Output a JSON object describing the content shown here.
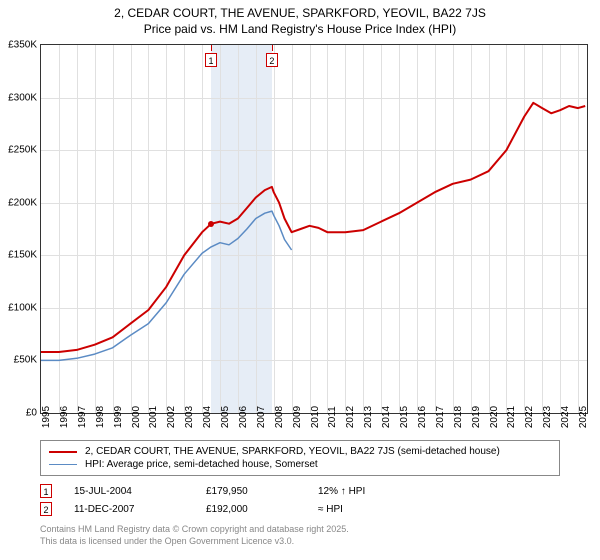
{
  "title_line1": "2, CEDAR COURT, THE AVENUE, SPARKFORD, YEOVIL, BA22 7JS",
  "title_line2": "Price paid vs. HM Land Registry's House Price Index (HPI)",
  "chart": {
    "type": "line",
    "background_color": "#ffffff",
    "grid_color": "#e0e0e0",
    "border_color": "#333333",
    "highlight_band": {
      "x_start": 2004.5,
      "x_end": 2007.9,
      "color": "rgba(200,215,235,0.45)"
    },
    "xlim": [
      1995,
      2025.5
    ],
    "ylim": [
      0,
      350000
    ],
    "ytick_step": 50000,
    "ytick_prefix": "£",
    "ytick_suffix": "K",
    "xticks": [
      1995,
      1996,
      1997,
      1998,
      1999,
      2000,
      2001,
      2002,
      2003,
      2004,
      2005,
      2006,
      2007,
      2008,
      2009,
      2010,
      2011,
      2012,
      2013,
      2014,
      2015,
      2016,
      2017,
      2018,
      2019,
      2020,
      2021,
      2022,
      2023,
      2024,
      2025
    ],
    "label_fontsize": 10,
    "series": [
      {
        "name": "subject",
        "label": "2, CEDAR COURT, THE AVENUE, SPARKFORD, YEOVIL, BA22 7JS (semi-detached house)",
        "color": "#cc0000",
        "width": 2,
        "points": [
          [
            1995.0,
            58000
          ],
          [
            1996.0,
            58000
          ],
          [
            1997.0,
            60000
          ],
          [
            1998.0,
            65000
          ],
          [
            1999.0,
            72000
          ],
          [
            2000.0,
            85000
          ],
          [
            2001.0,
            98000
          ],
          [
            2002.0,
            120000
          ],
          [
            2003.0,
            150000
          ],
          [
            2004.0,
            172000
          ],
          [
            2004.5,
            179950
          ],
          [
            2005.0,
            182000
          ],
          [
            2005.5,
            180000
          ],
          [
            2006.0,
            185000
          ],
          [
            2006.5,
            195000
          ],
          [
            2007.0,
            205000
          ],
          [
            2007.5,
            212000
          ],
          [
            2007.9,
            215000
          ],
          [
            2008.0,
            210000
          ],
          [
            2008.3,
            200000
          ],
          [
            2008.6,
            185000
          ],
          [
            2009.0,
            172000
          ],
          [
            2009.5,
            175000
          ],
          [
            2010.0,
            178000
          ],
          [
            2010.5,
            176000
          ],
          [
            2011.0,
            172000
          ],
          [
            2012.0,
            172000
          ],
          [
            2013.0,
            174000
          ],
          [
            2014.0,
            182000
          ],
          [
            2015.0,
            190000
          ],
          [
            2016.0,
            200000
          ],
          [
            2017.0,
            210000
          ],
          [
            2018.0,
            218000
          ],
          [
            2019.0,
            222000
          ],
          [
            2020.0,
            230000
          ],
          [
            2021.0,
            250000
          ],
          [
            2022.0,
            282000
          ],
          [
            2022.5,
            295000
          ],
          [
            2023.0,
            290000
          ],
          [
            2023.5,
            285000
          ],
          [
            2024.0,
            288000
          ],
          [
            2024.5,
            292000
          ],
          [
            2025.0,
            290000
          ],
          [
            2025.4,
            292000
          ]
        ]
      },
      {
        "name": "hpi",
        "label": "HPI: Average price, semi-detached house, Somerset",
        "color": "#5b8bc4",
        "width": 1.5,
        "points": [
          [
            1995.0,
            50000
          ],
          [
            1996.0,
            50000
          ],
          [
            1997.0,
            52000
          ],
          [
            1998.0,
            56000
          ],
          [
            1999.0,
            62000
          ],
          [
            2000.0,
            74000
          ],
          [
            2001.0,
            85000
          ],
          [
            2002.0,
            105000
          ],
          [
            2003.0,
            132000
          ],
          [
            2004.0,
            152000
          ],
          [
            2004.5,
            158000
          ],
          [
            2005.0,
            162000
          ],
          [
            2005.5,
            160000
          ],
          [
            2006.0,
            166000
          ],
          [
            2006.5,
            175000
          ],
          [
            2007.0,
            185000
          ],
          [
            2007.5,
            190000
          ],
          [
            2007.9,
            192000
          ],
          [
            2008.0,
            188000
          ],
          [
            2008.3,
            178000
          ],
          [
            2008.6,
            165000
          ],
          [
            2009.0,
            155000
          ]
        ]
      }
    ],
    "markers": [
      {
        "id": "1",
        "x": 2004.5,
        "y": 179950,
        "dot": true
      },
      {
        "id": "2",
        "x": 2007.9,
        "y": 192000,
        "dot": false
      }
    ]
  },
  "legend": {
    "items": [
      {
        "color": "#cc0000",
        "width": 2,
        "label_path": "chart.series.0.label"
      },
      {
        "color": "#5b8bc4",
        "width": 1.5,
        "label_path": "chart.series.1.label"
      }
    ]
  },
  "data_rows": [
    {
      "marker_id": "1",
      "date": "15-JUL-2004",
      "price": "£179,950",
      "pct": "12% ↑ HPI"
    },
    {
      "marker_id": "2",
      "date": "11-DEC-2007",
      "price": "£192,000",
      "pct": "≈ HPI"
    }
  ],
  "footer_line1": "Contains HM Land Registry data © Crown copyright and database right 2025.",
  "footer_line2": "This data is licensed under the Open Government Licence v3.0."
}
